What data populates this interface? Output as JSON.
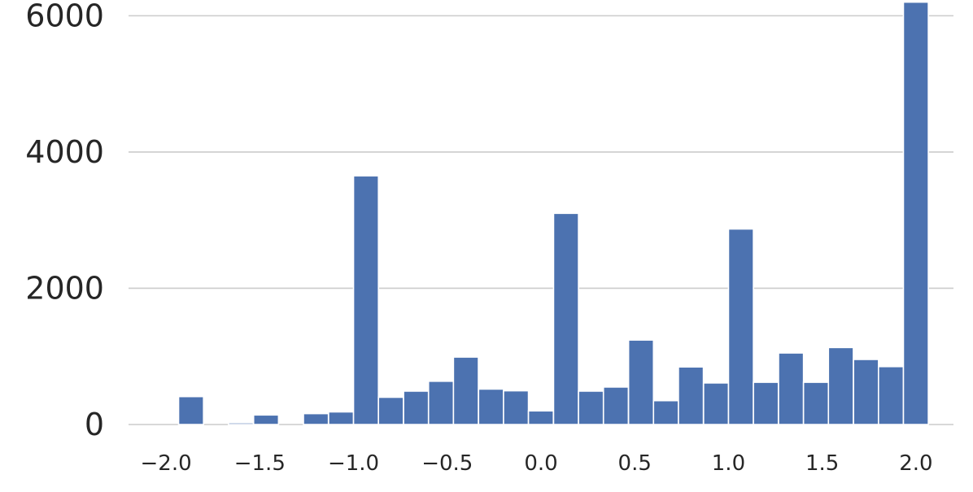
{
  "chart_data": {
    "type": "bar",
    "title": "",
    "xlabel": "",
    "ylabel": "",
    "bin_width": 0.133,
    "x_bin_starts": [
      -1.933,
      -1.8,
      -1.667,
      -1.533,
      -1.4,
      -1.267,
      -1.133,
      -1.0,
      -0.867,
      -0.733,
      -0.6,
      -0.467,
      -0.333,
      -0.2,
      -0.067,
      0.067,
      0.2,
      0.333,
      0.467,
      0.6,
      0.733,
      0.867,
      1.0,
      1.133,
      1.267,
      1.4,
      1.533,
      1.667,
      1.8,
      1.933
    ],
    "values": [
      410,
      0,
      25,
      140,
      0,
      160,
      185,
      3650,
      400,
      490,
      635,
      990,
      520,
      495,
      200,
      3100,
      490,
      550,
      1240,
      350,
      845,
      610,
      2870,
      620,
      1050,
      620,
      1130,
      955,
      850,
      6200
    ],
    "xlim": [
      -2.2,
      2.2
    ],
    "ylim": [
      0,
      6100
    ],
    "x_ticks": [
      -2.0,
      -1.5,
      -1.0,
      -0.5,
      0.0,
      0.5,
      1.0,
      1.5,
      2.0
    ],
    "x_tick_labels": [
      "−2.0",
      "−1.5",
      "−1.0",
      "−0.5",
      "0.0",
      "0.5",
      "1.0",
      "1.5",
      "2.0"
    ],
    "y_ticks": [
      0,
      2000,
      4000,
      6000
    ],
    "y_tick_labels": [
      "0",
      "2000",
      "4000",
      "6000"
    ],
    "grid": "horizontal",
    "bar_color": "#4c72b0",
    "grid_color": "#cccccc",
    "text_color": "#262626"
  }
}
